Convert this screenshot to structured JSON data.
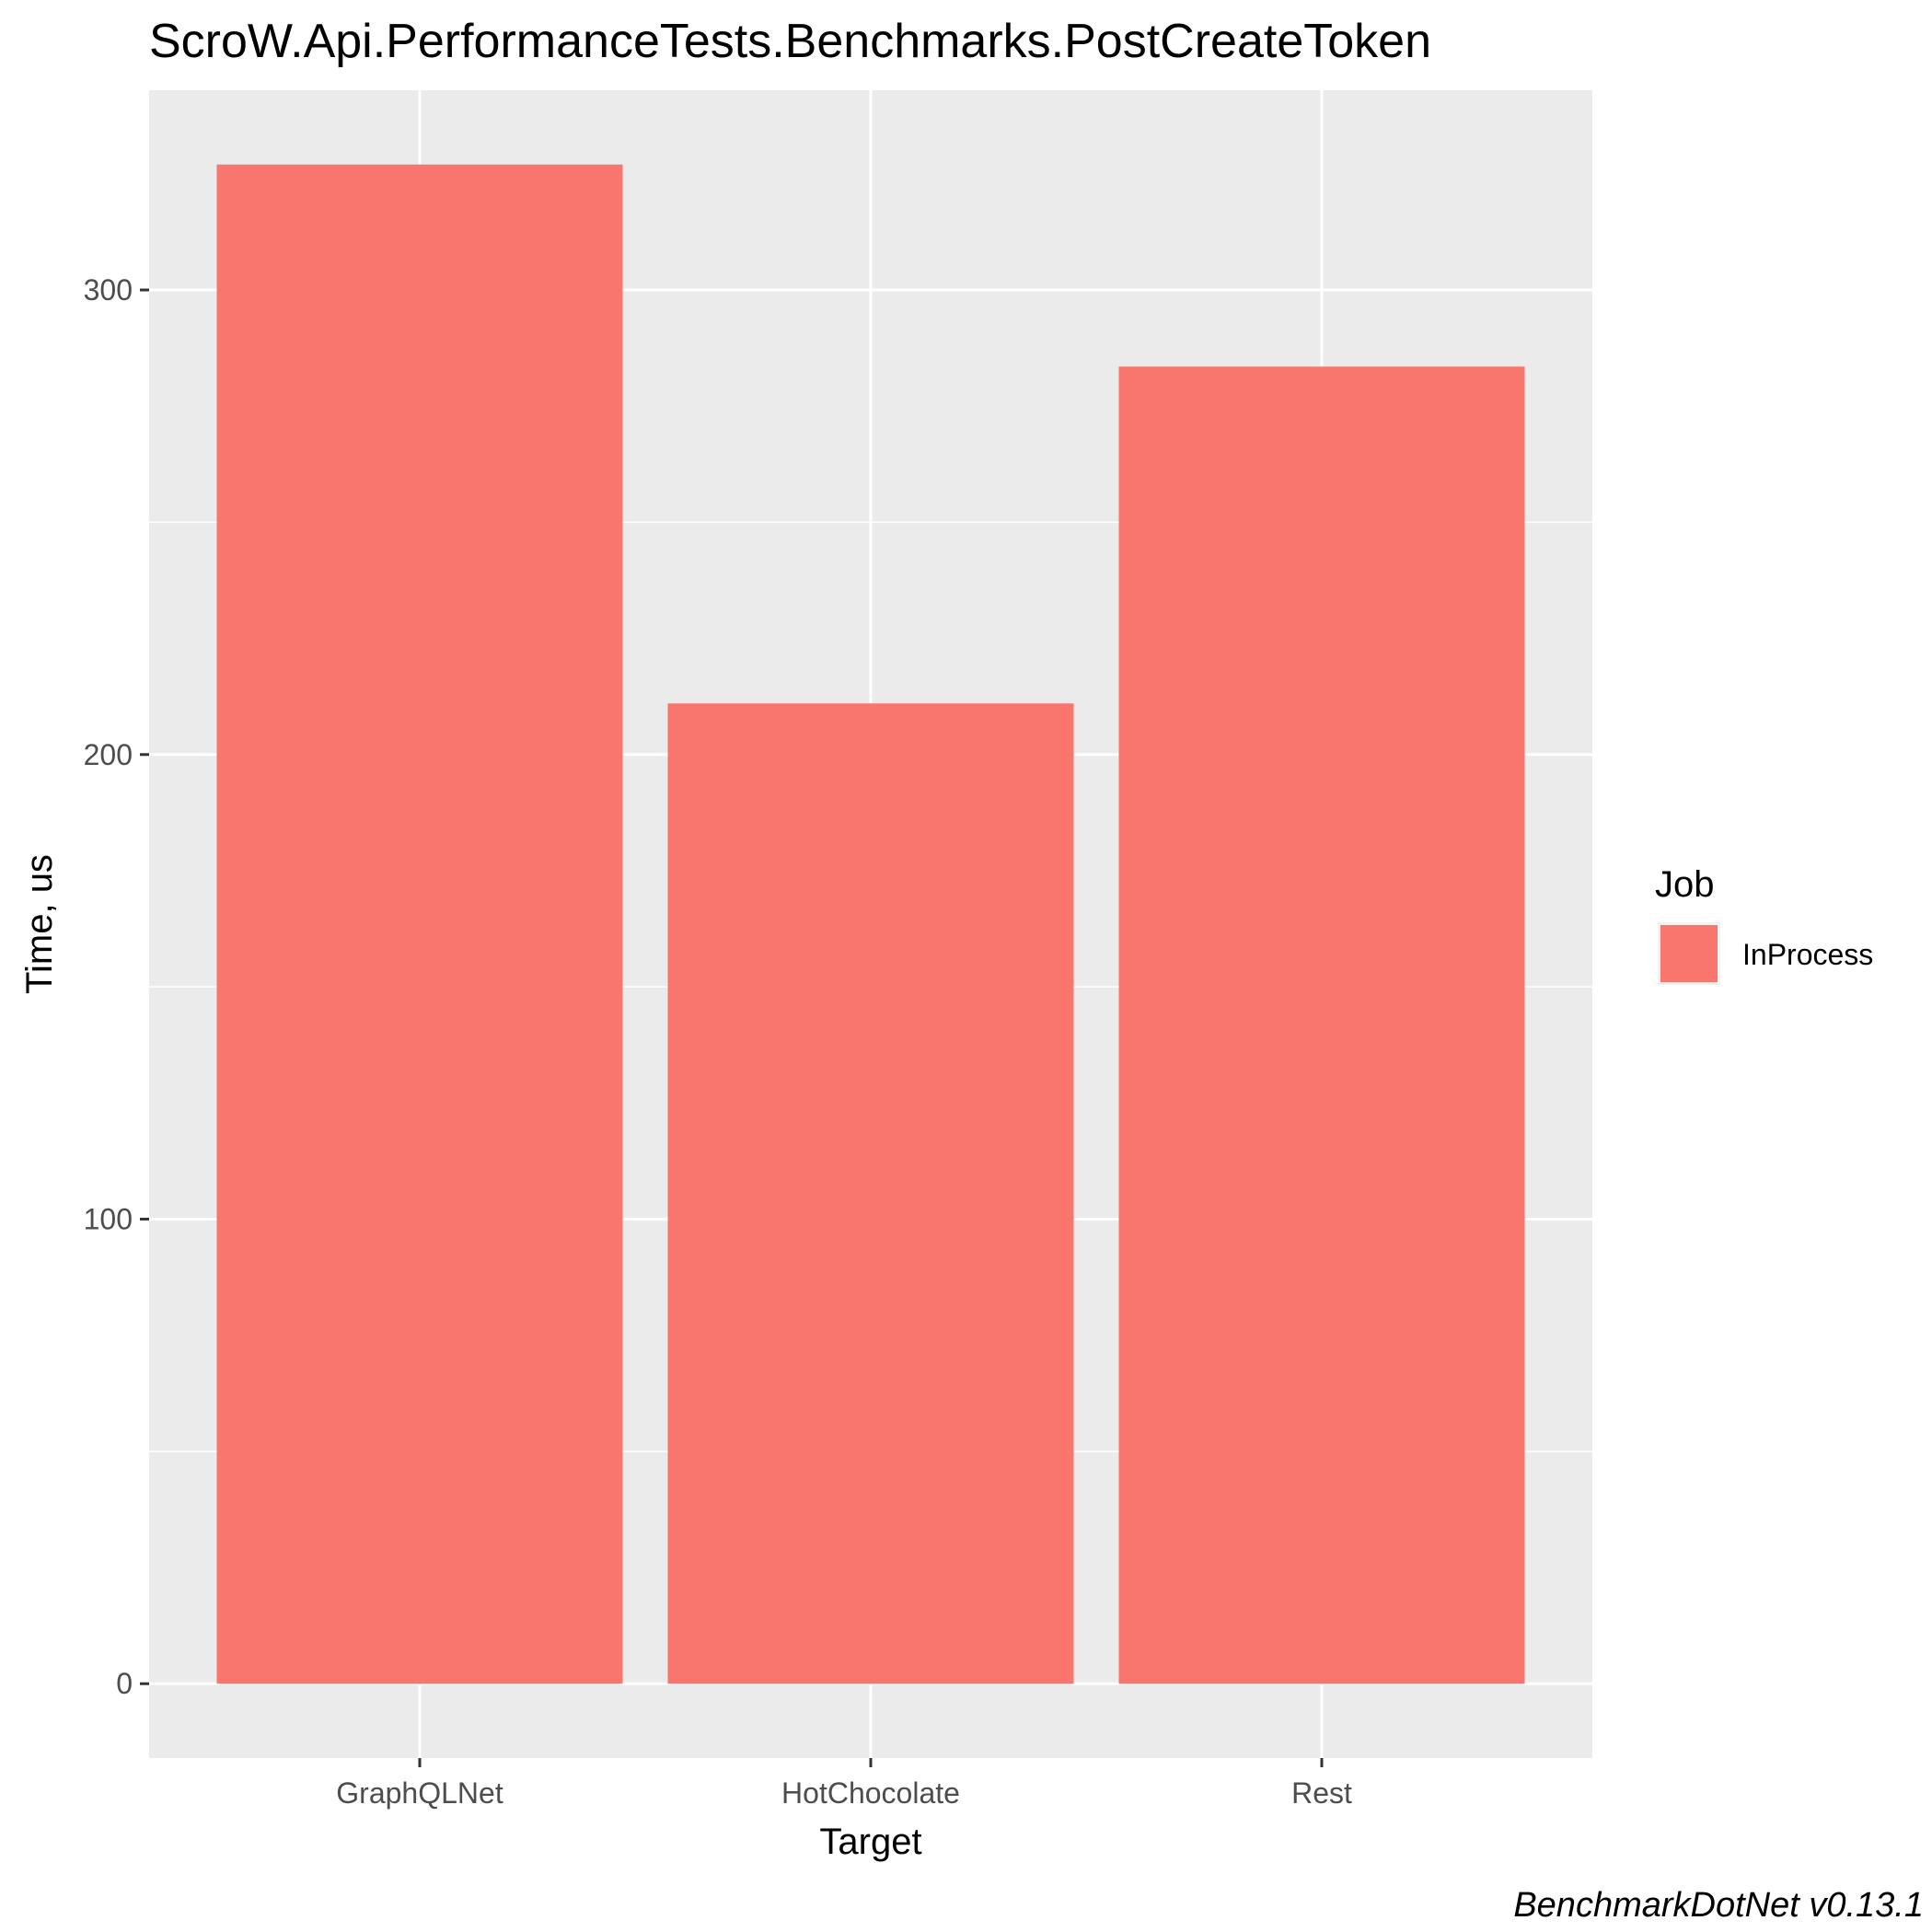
{
  "chart_data": {
    "type": "bar",
    "title": "ScroW.Api.PerformanceTests.Benchmarks.PostCreateToken",
    "xlabel": "Target",
    "ylabel": "Time, us",
    "categories": [
      "GraphQLNet",
      "HotChocolate",
      "Rest"
    ],
    "series": [
      {
        "name": "InProcess",
        "values": [
          327,
          211,
          283.5
        ],
        "color": "#F8766D"
      }
    ],
    "ylim": [
      -16,
      343
    ],
    "y_major_ticks": [
      0,
      100,
      200,
      300
    ],
    "y_tick_labels": [
      "0",
      "100",
      "200",
      "300"
    ],
    "y_minor_ticks": [
      50,
      150,
      250
    ],
    "grid": true,
    "panel_background": "#EBEBEB",
    "gridline_color": "#FFFFFF",
    "legend": {
      "title": "Job",
      "placement": "right",
      "entries": [
        "InProcess"
      ]
    },
    "caption": "BenchmarkDotNet v0.13.1"
  }
}
